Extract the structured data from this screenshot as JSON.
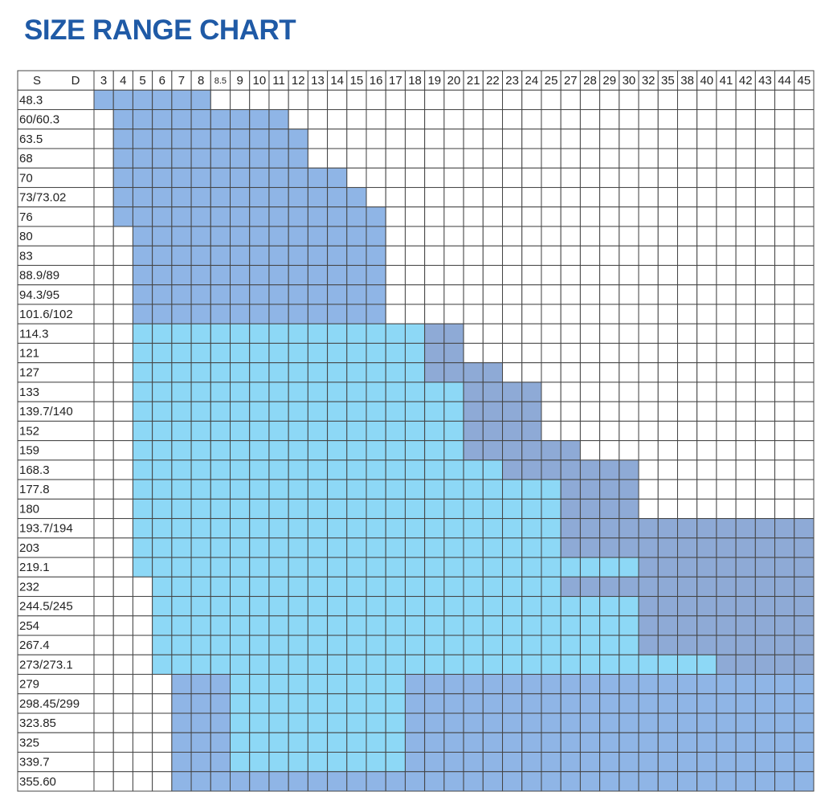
{
  "title": "SIZE RANGE CHART",
  "table": {
    "corner": [
      "S",
      "D"
    ],
    "columns": [
      "3",
      "4",
      "5",
      "6",
      "7",
      "8",
      "8.5",
      "9",
      "10",
      "11",
      "12",
      "13",
      "14",
      "15",
      "16",
      "17",
      "18",
      "19",
      "20",
      "21",
      "22",
      "23",
      "24",
      "25",
      "27",
      "28",
      "29",
      "30",
      "32",
      "35",
      "38",
      "40",
      "41",
      "42",
      "43",
      "44",
      "45"
    ],
    "colors": {
      "a": "#8fb5e6",
      "c": "#8dd8f6",
      "g": "#8eaad6"
    },
    "rows": [
      {
        "label": "48.3",
        "cells": "aaaaaa"
      },
      {
        "label": "60/60.3",
        "cells": ".aaaaaaaaa"
      },
      {
        "label": "63.5",
        "cells": ".aaaaaaaaaa"
      },
      {
        "label": "68",
        "cells": ".aaaaaaaaaa"
      },
      {
        "label": "70",
        "cells": ".aaaaaaaaaaaa"
      },
      {
        "label": "73/73.02",
        "cells": ".aaaaaaaaaaaaa"
      },
      {
        "label": "76",
        "cells": ".aaaaaaaaaaaaaa"
      },
      {
        "label": "80",
        "cells": "..aaaaaaaaaaaaa"
      },
      {
        "label": "83",
        "cells": "..aaaaaaaaaaaaa"
      },
      {
        "label": "88.9/89",
        "cells": "..aaaaaaaaaaaaa"
      },
      {
        "label": "94.3/95",
        "cells": "..aaaaaaaaaaaaa"
      },
      {
        "label": "101.6/102",
        "cells": "..aaaaaaaaaaaaa"
      },
      {
        "label": "114.3",
        "cells": "..cccccccccccccccgg"
      },
      {
        "label": "121",
        "cells": "..cccccccccccccccgg"
      },
      {
        "label": "127",
        "cells": "..cccccccccccccccgggg"
      },
      {
        "label": "133",
        "cells": "..cccccccccccccccccgggg"
      },
      {
        "label": "139.7/140",
        "cells": "..cccccccccccccccccgggg"
      },
      {
        "label": "152",
        "cells": "..cccccccccccccccccgggg"
      },
      {
        "label": "159",
        "cells": "..cccccccccccccccccgggggg"
      },
      {
        "label": "168.3",
        "cells": "..cccccccccccccccccccggggggg"
      },
      {
        "label": "177.8",
        "cells": "..ccccccccccccccccccccccgggg"
      },
      {
        "label": "180",
        "cells": "..ccccccccccccccccccccccgggg"
      },
      {
        "label": "193.7/194",
        "cells": "..ccccccccccccccccccccccggggggggggggg"
      },
      {
        "label": "203",
        "cells": "..ccccccccccccccccccccccggggggggggggg"
      },
      {
        "label": "219.1",
        "cells": "..ccccccccccccccccccccccccccggggggggg"
      },
      {
        "label": "232",
        "cells": "...cccccccccccccccccccccggggggggggggg"
      },
      {
        "label": "244.5/245",
        "cells": "...cccccccccccccccccccccccccggggggggg"
      },
      {
        "label": "254",
        "cells": "...cccccccccccccccccccccccccggggggggg"
      },
      {
        "label": "267.4",
        "cells": "...cccccccccccccccccccccccccggggggggg"
      },
      {
        "label": "273/273.1",
        "cells": "...cccccccccccccccccccccccccccccggggg"
      },
      {
        "label": "279",
        "cells": "....aaacccccccccaaaaaaaaaaaaaaaaaaaaa"
      },
      {
        "label": "298.45/299",
        "cells": "....aaacccccccccaaaaaaaaaaaaaaaaaaaaa"
      },
      {
        "label": "323.85",
        "cells": "....aaacccccccccaaaaaaaaaaaaaaaaaaaaa"
      },
      {
        "label": "325",
        "cells": "....aaacccccccccaaaaaaaaaaaaaaaaaaaaa"
      },
      {
        "label": "339.7",
        "cells": "....aaacccccccccaaaaaaaaaaaaaaaaaaaaa"
      },
      {
        "label": "355.60",
        "cells": "....aaaaaaaaaaaaaaaaaaaaaaaaaaaaaaaaa"
      }
    ]
  }
}
